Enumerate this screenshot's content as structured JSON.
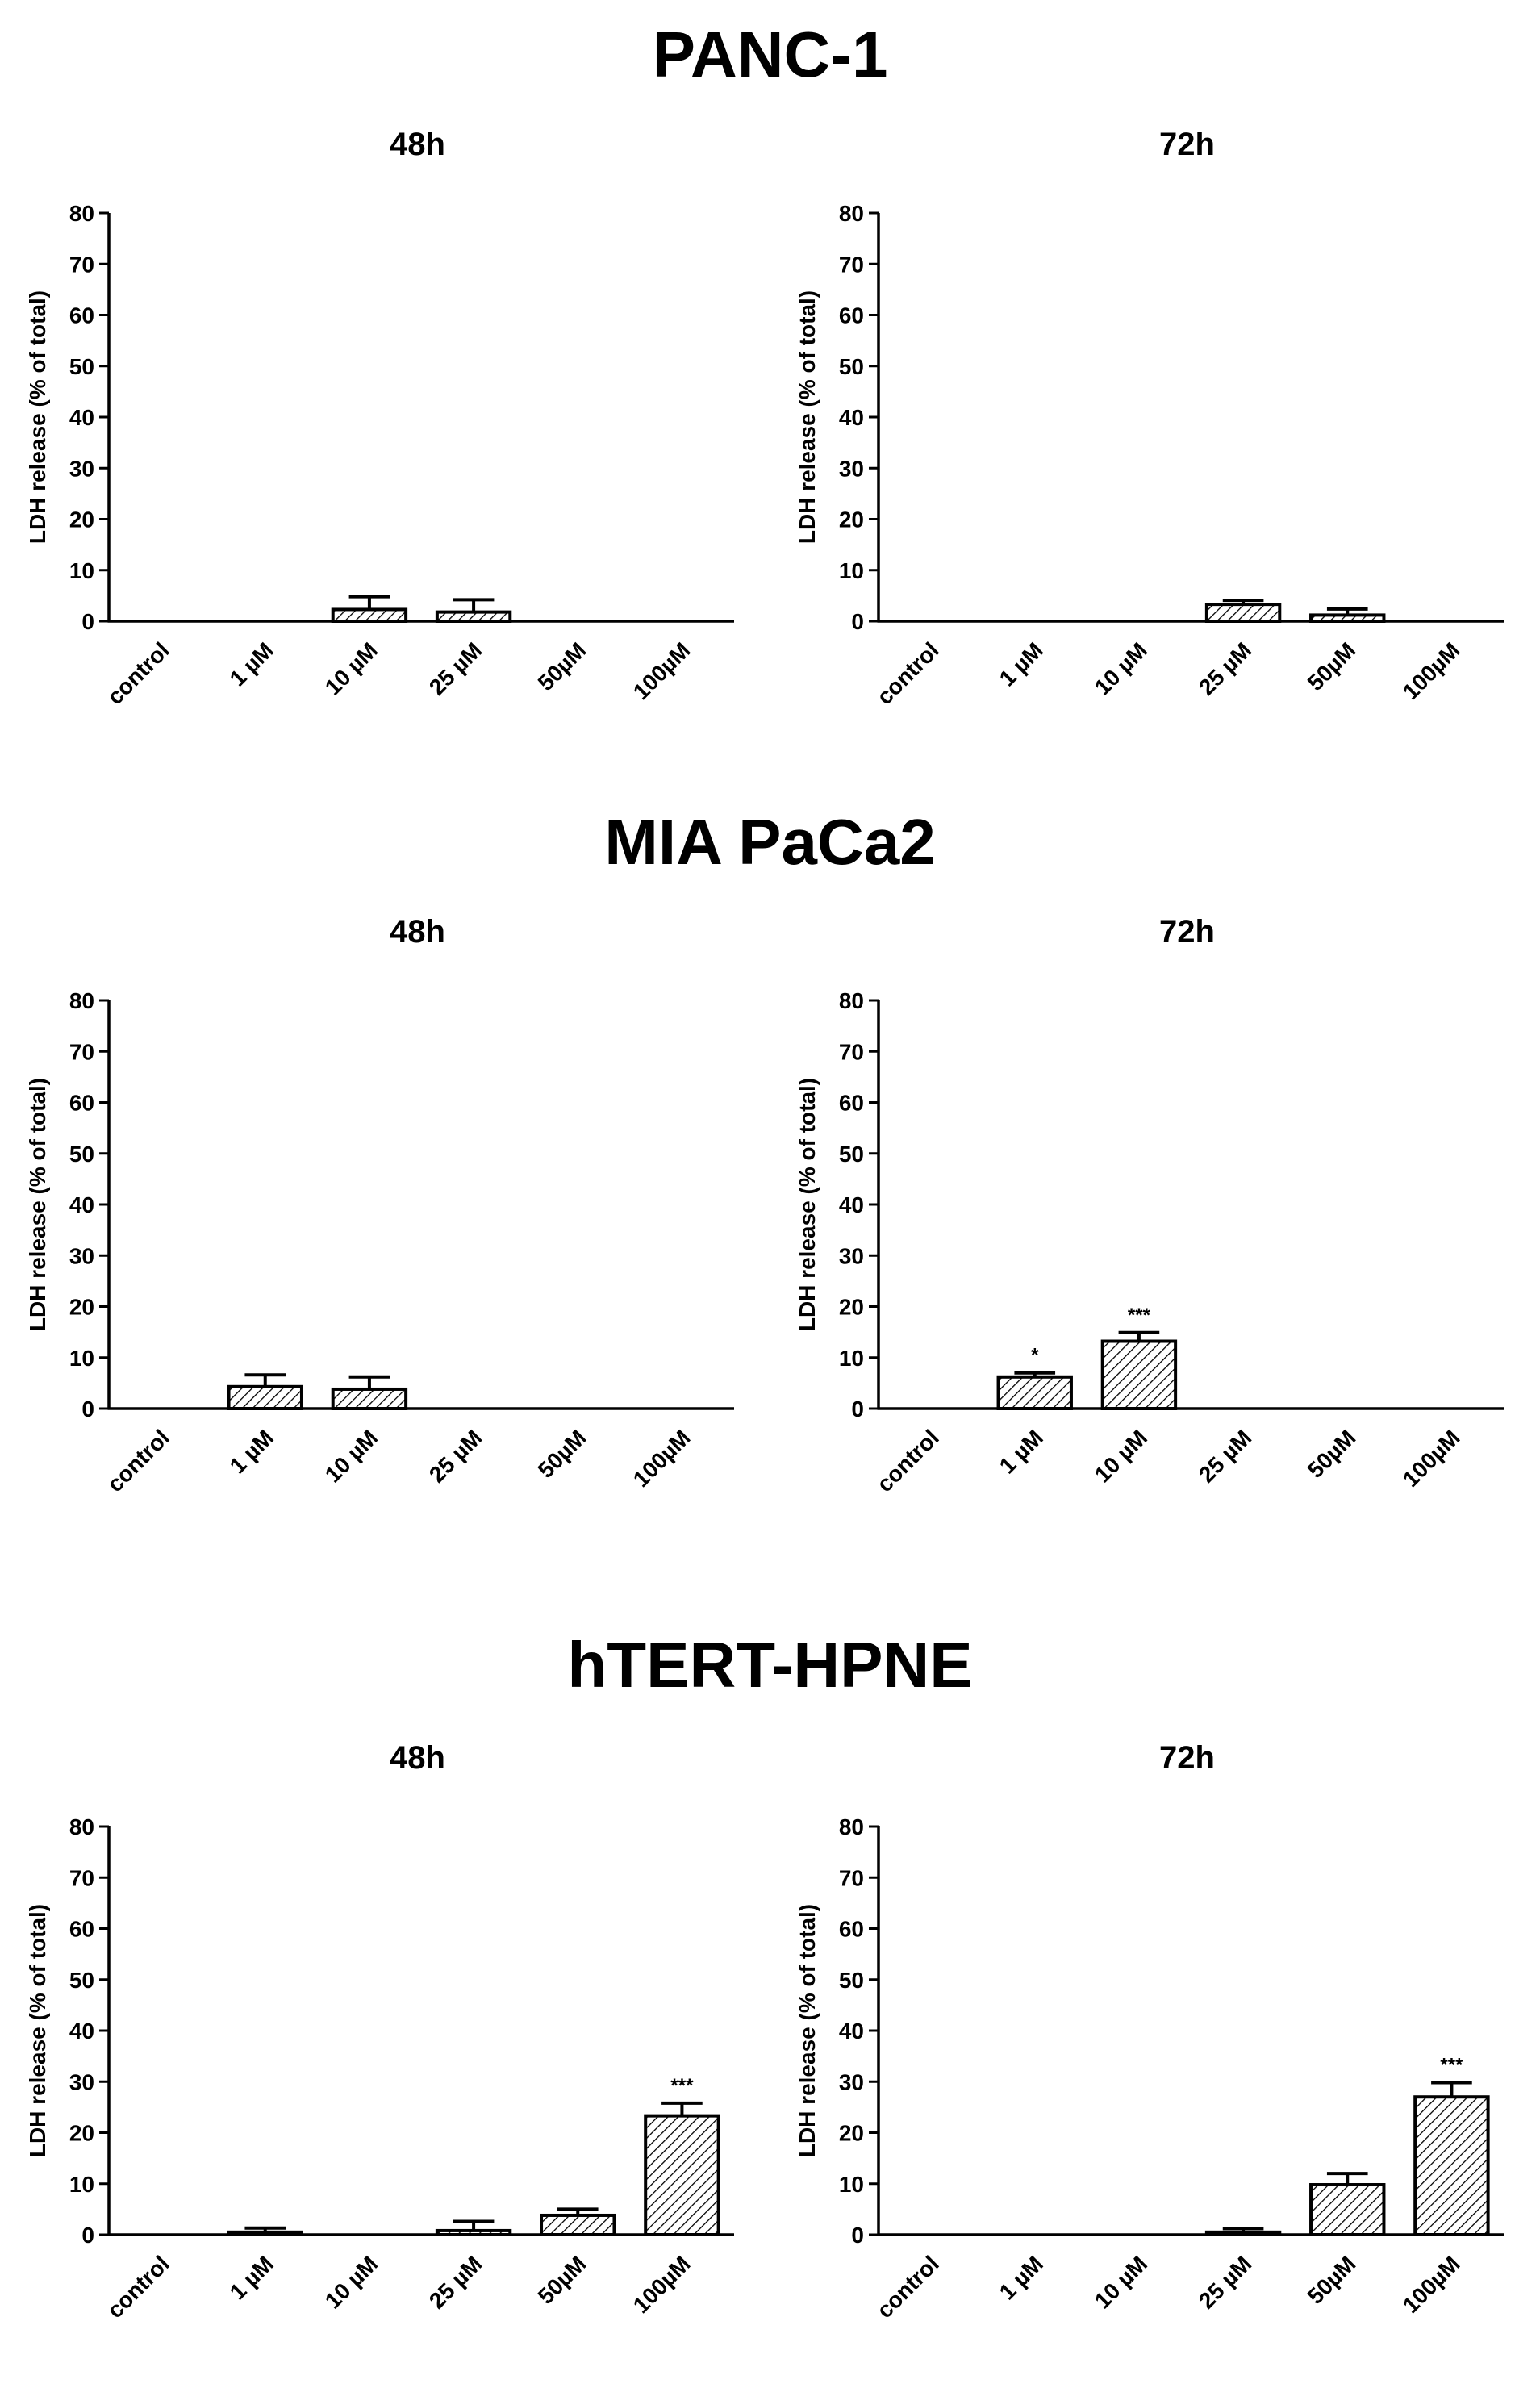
{
  "groups": [
    {
      "title": "PANC-1"
    },
    {
      "title": "MIA PaCa2"
    },
    {
      "title": "hTERT-HPNE"
    }
  ],
  "chart_data": [
    {
      "type": "bar",
      "group": "PANC-1",
      "title": "48h",
      "ylabel": "LDH release (%  of total)",
      "xlabel": "",
      "ylim": [
        0,
        80
      ],
      "yticks": [
        0,
        10,
        20,
        30,
        40,
        50,
        60,
        70,
        80
      ],
      "categories": [
        "control",
        "1 µM",
        "10 µM",
        "25 µM",
        "50µM",
        "100µM"
      ],
      "values": [
        0,
        0,
        2.3,
        1.8,
        0,
        0
      ],
      "errors": [
        0,
        0,
        2.5,
        2.4,
        0,
        0
      ],
      "annotations": [
        "",
        "",
        "",
        "",
        "",
        ""
      ]
    },
    {
      "type": "bar",
      "group": "PANC-1",
      "title": "72h",
      "ylabel": "LDH release (%  of total)",
      "xlabel": "",
      "ylim": [
        0,
        80
      ],
      "yticks": [
        0,
        10,
        20,
        30,
        40,
        50,
        60,
        70,
        80
      ],
      "categories": [
        "control",
        "1 µM",
        "10 µM",
        "25 µM",
        "50µM",
        "100µM"
      ],
      "values": [
        0,
        0,
        0,
        3.3,
        1.2,
        0
      ],
      "errors": [
        0,
        0,
        0,
        0.8,
        1.2,
        0
      ],
      "annotations": [
        "",
        "",
        "",
        "",
        "",
        ""
      ]
    },
    {
      "type": "bar",
      "group": "MIA PaCa2",
      "title": "48h",
      "ylabel": "LDH release (%  of total)",
      "xlabel": "",
      "ylim": [
        0,
        80
      ],
      "yticks": [
        0,
        10,
        20,
        30,
        40,
        50,
        60,
        70,
        80
      ],
      "categories": [
        "control",
        "1 µM",
        "10 µM",
        "25 µM",
        "50µM",
        "100µM"
      ],
      "values": [
        0,
        4.3,
        3.8,
        0,
        0,
        0
      ],
      "errors": [
        0,
        2.3,
        2.4,
        0,
        0,
        0
      ],
      "annotations": [
        "",
        "",
        "",
        "",
        "",
        ""
      ]
    },
    {
      "type": "bar",
      "group": "MIA PaCa2",
      "title": "72h",
      "ylabel": "LDH release (%  of total)",
      "xlabel": "",
      "ylim": [
        0,
        80
      ],
      "yticks": [
        0,
        10,
        20,
        30,
        40,
        50,
        60,
        70,
        80
      ],
      "categories": [
        "control",
        "1 µM",
        "10 µM",
        "25 µM",
        "50µM",
        "100µM"
      ],
      "values": [
        0,
        6.2,
        13.2,
        0,
        0,
        0
      ],
      "errors": [
        0,
        0.8,
        1.7,
        0,
        0,
        0
      ],
      "annotations": [
        "",
        "*",
        "***",
        "",
        "",
        ""
      ]
    },
    {
      "type": "bar",
      "group": "hTERT-HPNE",
      "title": "48h",
      "ylabel": "LDH release (%  of total)",
      "xlabel": "",
      "ylim": [
        0,
        80
      ],
      "yticks": [
        0,
        10,
        20,
        30,
        40,
        50,
        60,
        70,
        80
      ],
      "categories": [
        "control",
        "1 µM",
        "10 µM",
        "25 µM",
        "50µM",
        "100µM"
      ],
      "values": [
        0,
        0.5,
        0,
        0.8,
        3.8,
        23.3
      ],
      "errors": [
        0,
        0.8,
        0,
        1.8,
        1.2,
        2.5
      ],
      "annotations": [
        "",
        "",
        "",
        "",
        "",
        "***"
      ]
    },
    {
      "type": "bar",
      "group": "hTERT-HPNE",
      "title": "72h",
      "ylabel": "LDH release (%  of total)",
      "xlabel": "",
      "ylim": [
        0,
        80
      ],
      "yticks": [
        0,
        10,
        20,
        30,
        40,
        50,
        60,
        70,
        80
      ],
      "categories": [
        "control",
        "1 µM",
        "10 µM",
        "25 µM",
        "50µM",
        "100µM"
      ],
      "values": [
        0,
        0,
        0,
        0.5,
        9.8,
        27
      ],
      "errors": [
        0,
        0,
        0,
        0.7,
        2.2,
        2.8
      ],
      "annotations": [
        "",
        "",
        "",
        "",
        "",
        "***"
      ]
    }
  ]
}
